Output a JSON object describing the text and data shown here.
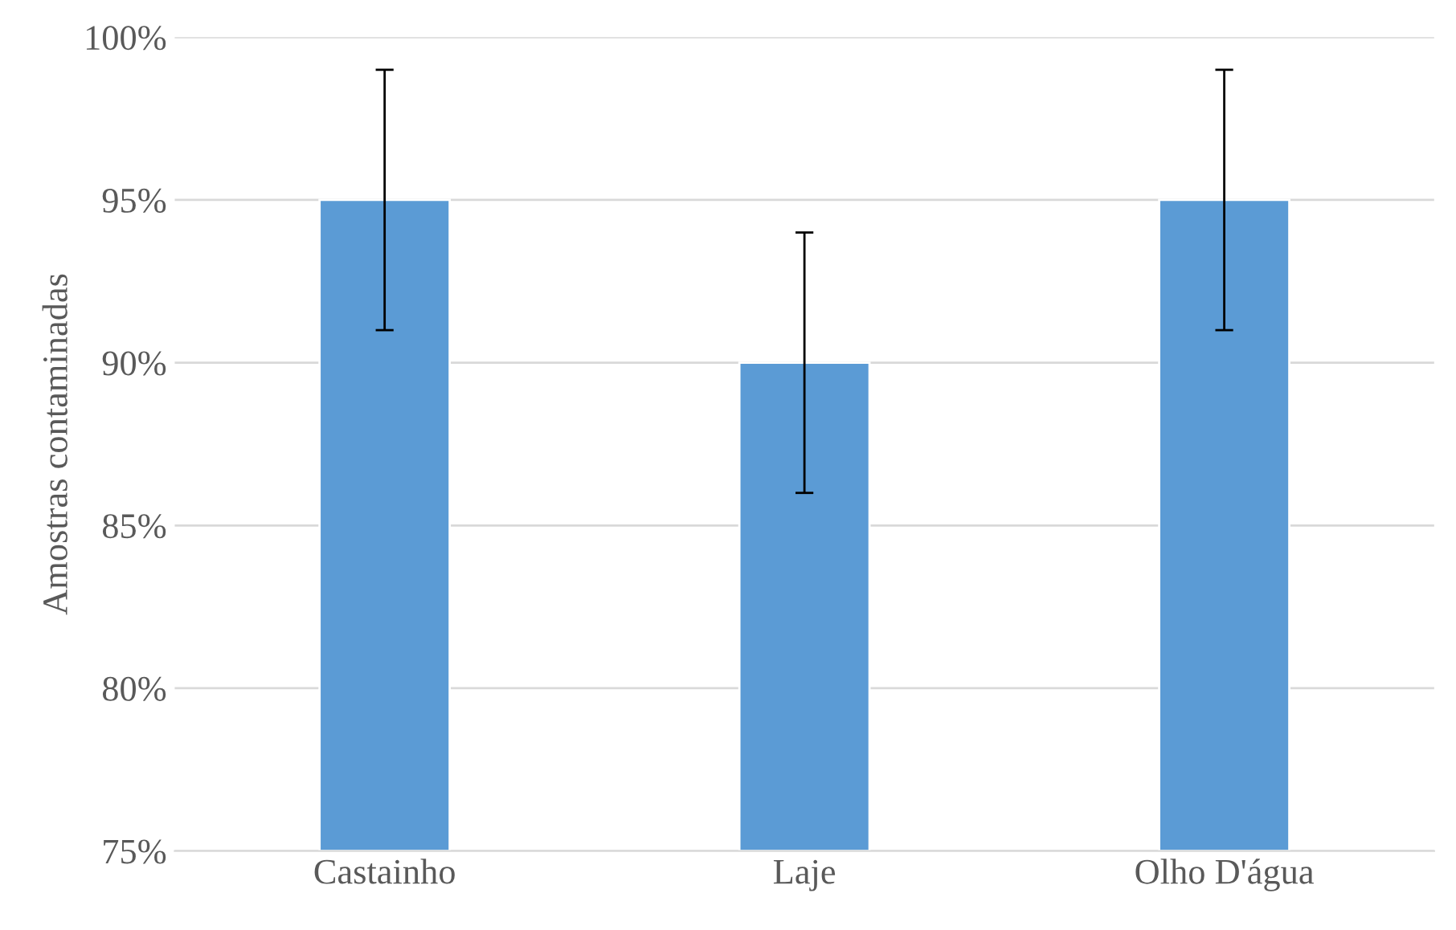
{
  "chart_data": {
    "type": "bar",
    "ylabel": "Amostras contaminadas",
    "categories": [
      "Castainho",
      "Laje",
      "Olho D'água"
    ],
    "series": [
      {
        "color": "#5b9bd5",
        "values": [
          95,
          90,
          95
        ],
        "errors": [
          4,
          4,
          4
        ]
      }
    ],
    "ylim": [
      75,
      100
    ],
    "yticks": [
      {
        "value": 75,
        "label": "75%"
      },
      {
        "value": 80,
        "label": "80%"
      },
      {
        "value": 85,
        "label": "85%"
      },
      {
        "value": 90,
        "label": "90%"
      },
      {
        "value": 95,
        "label": "95%"
      },
      {
        "value": 100,
        "label": "100%"
      }
    ],
    "grid": "y"
  }
}
